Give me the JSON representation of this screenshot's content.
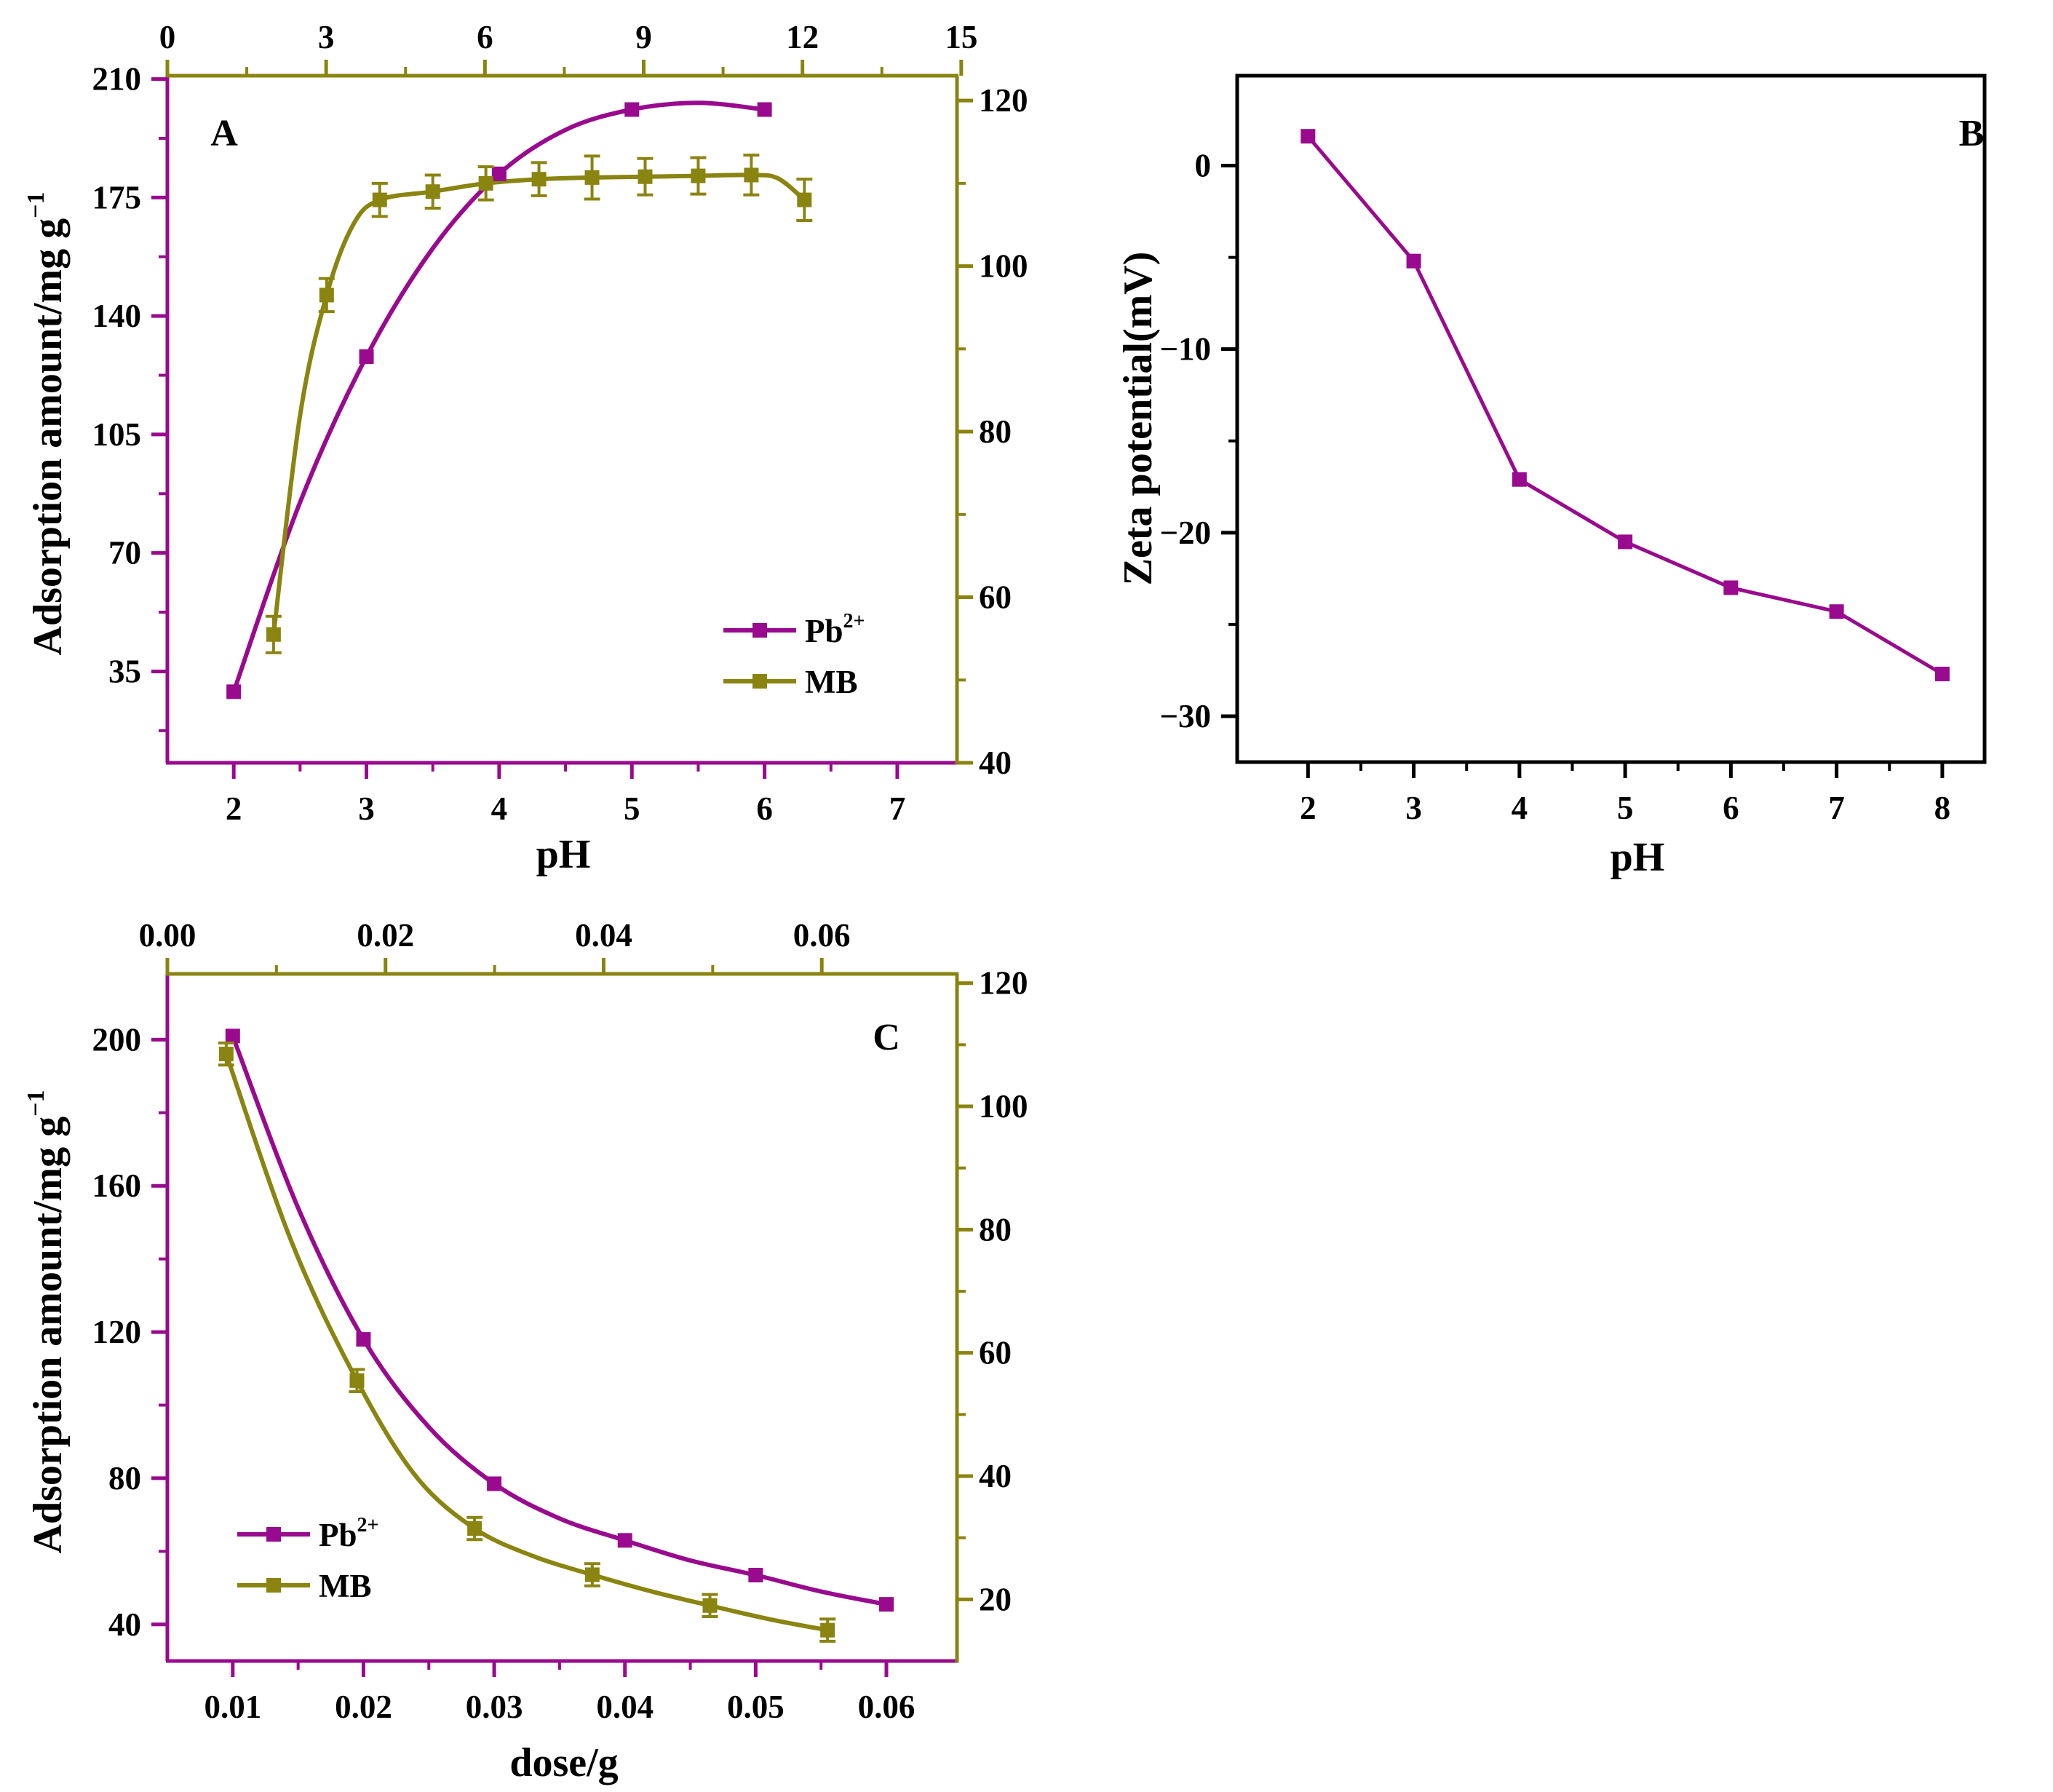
{
  "colors": {
    "pb": "#990a8e",
    "mb": "#8a8410",
    "black": "#000000"
  },
  "chart_data": [
    {
      "panel": "A",
      "type": "line",
      "title": "A",
      "xlabel": "pH",
      "ylabel": "Adsorption amount/mg g",
      "ylabel_sup": "−1",
      "xlim": [
        1.5,
        7.45
      ],
      "xticks": [
        2,
        3,
        4,
        5,
        6,
        7
      ],
      "x2lim": [
        0,
        14.92
      ],
      "x2ticks": [
        0,
        3,
        6,
        9,
        12,
        15
      ],
      "ylim": [
        8,
        211
      ],
      "yticks": [
        35,
        70,
        105,
        140,
        175,
        210
      ],
      "y2lim": [
        40,
        123
      ],
      "y2ticks": [
        40,
        60,
        80,
        100,
        120
      ],
      "legend": "bottom-right",
      "series": [
        {
          "name": "Pb",
          "name_sup": "2+",
          "axis": "left",
          "x": [
            2,
            3,
            4,
            5,
            6
          ],
          "y": [
            29,
            128,
            182,
            201,
            201
          ],
          "curve": [
            [
              2,
              29
            ],
            [
              2.5,
              85
            ],
            [
              3,
              128
            ],
            [
              3.5,
              160
            ],
            [
              4,
              182
            ],
            [
              4.5,
              195
            ],
            [
              5,
              201
            ],
            [
              5.5,
              203
            ],
            [
              6,
              201
            ]
          ]
        },
        {
          "name": "MB",
          "axis": "right",
          "x": [
            2.3,
            2.7,
            3.1,
            3.5,
            3.9,
            4.3,
            4.7,
            5.1,
            5.5,
            5.9,
            6.3
          ],
          "y": [
            55.5,
            96.5,
            108,
            109,
            110,
            110.5,
            110.7,
            110.8,
            110.9,
            111,
            108
          ],
          "err": [
            2.2,
            2,
            2,
            2,
            2,
            2,
            2.6,
            2.2,
            2.2,
            2.4,
            2.5
          ],
          "curve": [
            [
              2.3,
              55.5
            ],
            [
              2.5,
              82
            ],
            [
              2.7,
              96.5
            ],
            [
              2.9,
              105
            ],
            [
              3.1,
              108
            ],
            [
              3.5,
              109
            ],
            [
              3.9,
              110
            ],
            [
              4.3,
              110.5
            ],
            [
              4.7,
              110.7
            ],
            [
              5.1,
              110.8
            ],
            [
              5.5,
              110.9
            ],
            [
              5.9,
              111
            ],
            [
              6.1,
              110.6
            ],
            [
              6.3,
              108
            ]
          ]
        }
      ]
    },
    {
      "panel": "B",
      "type": "line",
      "title": "B",
      "xlabel": "pH",
      "ylabel": "Zeta potential(mV)",
      "xlim": [
        1.33,
        8.4
      ],
      "xticks": [
        2,
        3,
        4,
        5,
        6,
        7,
        8
      ],
      "ylim": [
        -32.5,
        4.9
      ],
      "yticks": [
        0,
        -10,
        -20,
        -30
      ],
      "series": [
        {
          "name": "Zeta",
          "x": [
            2,
            3,
            4,
            5,
            6,
            7,
            8
          ],
          "y": [
            1.6,
            -5.2,
            -17.1,
            -20.5,
            -23,
            -24.3,
            -27.7
          ]
        }
      ]
    },
    {
      "panel": "C",
      "type": "line",
      "title": "C",
      "xlabel": "dose/g",
      "ylabel": "Adsorption amount/mg g",
      "ylabel_sup": "−1",
      "xlim": [
        0.005,
        0.0654
      ],
      "xticks": [
        0.01,
        0.02,
        0.03,
        0.04,
        0.05,
        0.06
      ],
      "x2lim": [
        0,
        0.0724
      ],
      "x2ticks": [
        0.0,
        0.02,
        0.04,
        0.06
      ],
      "ylim": [
        30,
        218
      ],
      "yticks": [
        40,
        80,
        120,
        160,
        200
      ],
      "y2lim": [
        10,
        121.5
      ],
      "y2ticks": [
        20,
        40,
        60,
        80,
        100,
        120
      ],
      "legend": "bottom-left",
      "series": [
        {
          "name": "Pb",
          "name_sup": "2+",
          "axis": "left",
          "x": [
            0.01,
            0.02,
            0.03,
            0.04,
            0.05,
            0.06
          ],
          "y": [
            201,
            118,
            78.5,
            63,
            53.5,
            45.5
          ],
          "curve": [
            [
              0.01,
              201
            ],
            [
              0.015,
              154
            ],
            [
              0.02,
              118
            ],
            [
              0.025,
              94
            ],
            [
              0.03,
              78.5
            ],
            [
              0.035,
              69
            ],
            [
              0.04,
              63
            ],
            [
              0.045,
              57.5
            ],
            [
              0.05,
              53.5
            ],
            [
              0.055,
              49
            ],
            [
              0.06,
              45.5
            ]
          ]
        },
        {
          "name": "MB",
          "axis": "right",
          "x": [
            0.0095,
            0.0195,
            0.0285,
            0.0375,
            0.0465,
            0.0555
          ],
          "y": [
            108.5,
            55.5,
            31.5,
            24,
            19,
            15
          ],
          "err": [
            1.8,
            1.8,
            1.8,
            1.8,
            1.8,
            1.8
          ],
          "curve": [
            [
              0.0095,
              108.5
            ],
            [
              0.0145,
              78
            ],
            [
              0.0195,
              55.5
            ],
            [
              0.024,
              40
            ],
            [
              0.0285,
              31.5
            ],
            [
              0.033,
              27
            ],
            [
              0.0375,
              24
            ],
            [
              0.042,
              21.3
            ],
            [
              0.0465,
              19
            ],
            [
              0.051,
              16.8
            ],
            [
              0.0555,
              15
            ]
          ]
        }
      ]
    }
  ]
}
